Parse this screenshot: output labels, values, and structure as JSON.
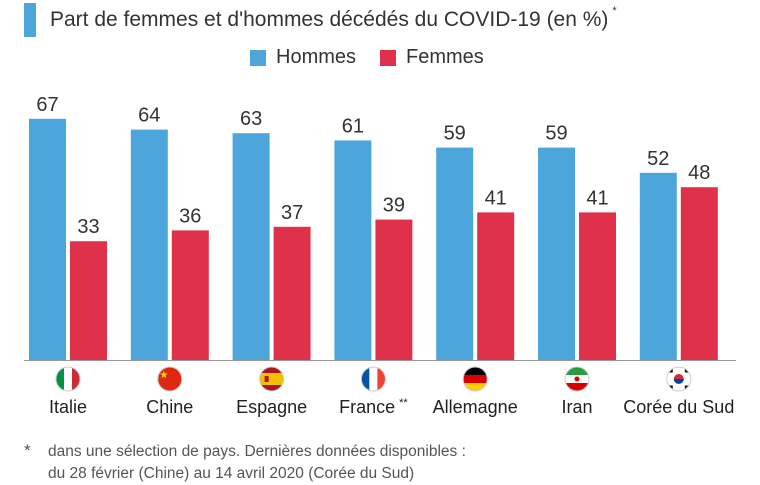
{
  "title": "Part de femmes et d'hommes décédés du COVID-19 (en %)",
  "title_marker": "*",
  "colors": {
    "hommes": "#4da6db",
    "femmes": "#e0314b",
    "accent": "#4da6db"
  },
  "chart_data": {
    "type": "bar",
    "title": "Part de femmes et d'hommes décédés du COVID-19 (en %)",
    "categories": [
      "Italie",
      "Chine",
      "Espagne",
      "France",
      "Allemagne",
      "Iran",
      "Corée du Sud"
    ],
    "category_markers": [
      "",
      "",
      "",
      "**",
      "",
      "",
      ""
    ],
    "flags": [
      "flag-italy-icon",
      "flag-china-icon",
      "flag-spain-icon",
      "flag-france-icon",
      "flag-germany-icon",
      "flag-iran-icon",
      "flag-south-korea-icon"
    ],
    "series": [
      {
        "name": "Hommes",
        "values": [
          67,
          64,
          63,
          61,
          59,
          59,
          52
        ]
      },
      {
        "name": "Femmes",
        "values": [
          33,
          36,
          37,
          39,
          41,
          41,
          48
        ]
      }
    ],
    "ylim": [
      0,
      70
    ],
    "grid": false,
    "legend": "top-center",
    "data_labels": true
  },
  "footnote": {
    "marker": "*",
    "line1": "dans une sélection de pays. Dernières données disponibles :",
    "line2": "du 28 février (Chine) au 14 avril 2020 (Corée du Sud)"
  }
}
